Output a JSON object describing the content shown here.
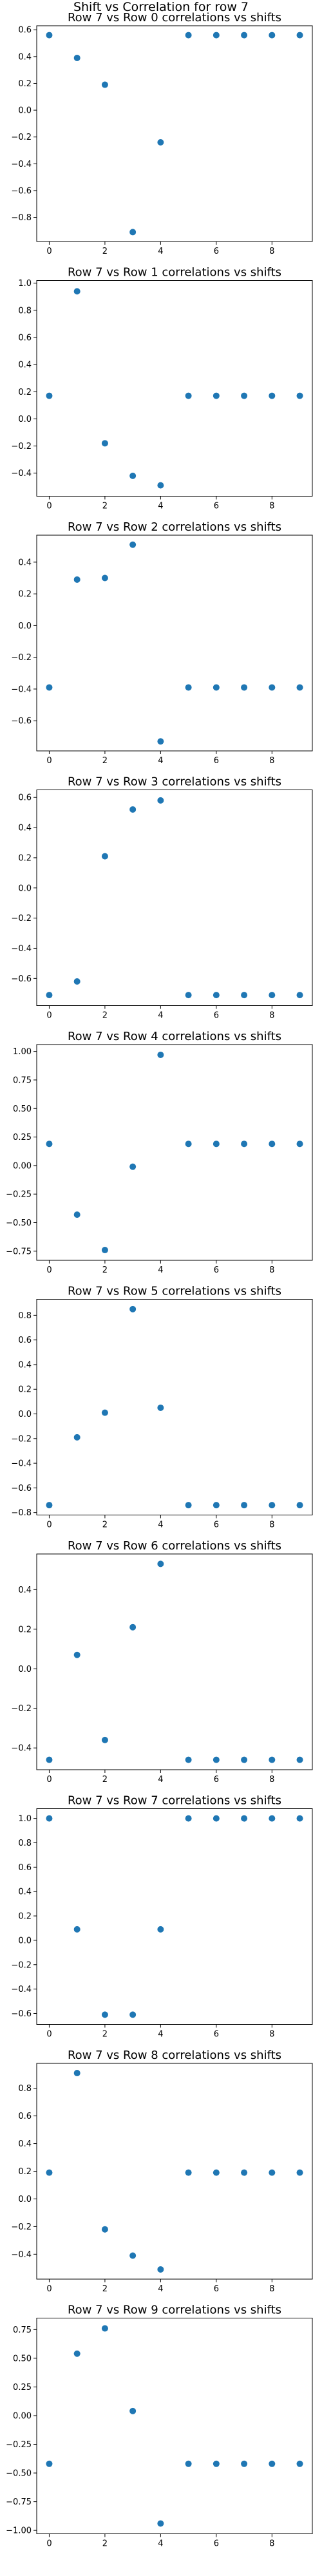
{
  "figure": {
    "suptitle": "Shift vs Correlation for row 7"
  },
  "colors": {
    "marker": "#1f77b4",
    "axes": "#000000",
    "background": "#ffffff"
  },
  "chart_data": [
    {
      "type": "scatter",
      "title": "Row 7 vs Row 0 correlations vs shifts",
      "x": [
        0,
        1,
        2,
        3,
        4,
        5,
        6,
        7,
        8,
        9
      ],
      "y": [
        0.56,
        0.39,
        0.19,
        -0.91,
        -0.24,
        0.56,
        0.56,
        0.56,
        0.56,
        0.56
      ],
      "ylim": [
        -0.98,
        0.63
      ],
      "yticks": [
        -0.8,
        -0.6,
        -0.4,
        -0.2,
        0.0,
        0.2,
        0.4,
        0.6
      ],
      "ytick_labels": [
        "−0.8",
        "−0.6",
        "−0.4",
        "−0.2",
        "0.0",
        "0.2",
        "0.4",
        "0.6"
      ],
      "xticks": [
        0,
        2,
        4,
        6,
        8
      ],
      "grid": false
    },
    {
      "type": "scatter",
      "title": "Row 7 vs Row 1 correlations vs shifts",
      "x": [
        0,
        1,
        2,
        3,
        4,
        5,
        6,
        7,
        8,
        9
      ],
      "y": [
        0.17,
        0.94,
        -0.18,
        -0.42,
        -0.49,
        0.17,
        0.17,
        0.17,
        0.17,
        0.17
      ],
      "ylim": [
        -0.57,
        1.02
      ],
      "yticks": [
        -0.4,
        -0.2,
        0.0,
        0.2,
        0.4,
        0.6,
        0.8,
        1.0
      ],
      "ytick_labels": [
        "−0.4",
        "−0.2",
        "0.0",
        "0.2",
        "0.4",
        "0.6",
        "0.8",
        "1.0"
      ],
      "xticks": [
        0,
        2,
        4,
        6,
        8
      ],
      "grid": false
    },
    {
      "type": "scatter",
      "title": "Row 7 vs Row 2 correlations vs shifts",
      "x": [
        0,
        1,
        2,
        3,
        4,
        5,
        6,
        7,
        8,
        9
      ],
      "y": [
        -0.39,
        0.29,
        0.3,
        0.51,
        -0.73,
        -0.39,
        -0.39,
        -0.39,
        -0.39,
        -0.39
      ],
      "ylim": [
        -0.79,
        0.57
      ],
      "yticks": [
        -0.6,
        -0.4,
        -0.2,
        0.0,
        0.2,
        0.4
      ],
      "ytick_labels": [
        "−0.6",
        "−0.4",
        "−0.2",
        "0.0",
        "0.2",
        "0.4"
      ],
      "xticks": [
        0,
        2,
        4,
        6,
        8
      ],
      "grid": false
    },
    {
      "type": "scatter",
      "title": "Row 7 vs Row 3 correlations vs shifts",
      "x": [
        0,
        1,
        2,
        3,
        4,
        5,
        6,
        7,
        8,
        9
      ],
      "y": [
        -0.71,
        -0.62,
        0.21,
        0.52,
        0.58,
        -0.71,
        -0.71,
        -0.71,
        -0.71,
        -0.71
      ],
      "ylim": [
        -0.78,
        0.65
      ],
      "yticks": [
        -0.6,
        -0.4,
        -0.2,
        0.0,
        0.2,
        0.4,
        0.6
      ],
      "ytick_labels": [
        "−0.6",
        "−0.4",
        "−0.2",
        "0.0",
        "0.2",
        "0.4",
        "0.6"
      ],
      "xticks": [
        0,
        2,
        4,
        6,
        8
      ],
      "grid": false
    },
    {
      "type": "scatter",
      "title": "Row 7 vs Row 4 correlations vs shifts",
      "x": [
        0,
        1,
        2,
        3,
        4,
        5,
        6,
        7,
        8,
        9
      ],
      "y": [
        0.19,
        -0.43,
        -0.74,
        -0.01,
        0.97,
        0.19,
        0.19,
        0.19,
        0.19,
        0.19
      ],
      "ylim": [
        -0.83,
        1.06
      ],
      "yticks": [
        -0.75,
        -0.5,
        -0.25,
        0.0,
        0.25,
        0.5,
        0.75,
        1.0
      ],
      "ytick_labels": [
        "−0.75",
        "−0.50",
        "−0.25",
        "0.00",
        "0.25",
        "0.50",
        "0.75",
        "1.00"
      ],
      "xticks": [
        0,
        2,
        4,
        6,
        8
      ],
      "grid": false
    },
    {
      "type": "scatter",
      "title": "Row 7 vs Row 5 correlations vs shifts",
      "x": [
        0,
        1,
        2,
        3,
        4,
        5,
        6,
        7,
        8,
        9
      ],
      "y": [
        -0.74,
        -0.19,
        0.01,
        0.85,
        0.05,
        -0.74,
        -0.74,
        -0.74,
        -0.74,
        -0.74
      ],
      "ylim": [
        -0.82,
        0.93
      ],
      "yticks": [
        -0.8,
        -0.6,
        -0.4,
        -0.2,
        0.0,
        0.2,
        0.4,
        0.6,
        0.8
      ],
      "ytick_labels": [
        "−0.8",
        "−0.6",
        "−0.4",
        "−0.2",
        "0.0",
        "0.2",
        "0.4",
        "0.6",
        "0.8"
      ],
      "xticks": [
        0,
        2,
        4,
        6,
        8
      ],
      "grid": false
    },
    {
      "type": "scatter",
      "title": "Row 7 vs Row 6 correlations vs shifts",
      "x": [
        0,
        1,
        2,
        3,
        4,
        5,
        6,
        7,
        8,
        9
      ],
      "y": [
        -0.46,
        0.07,
        -0.36,
        0.21,
        0.53,
        -0.46,
        -0.46,
        -0.46,
        -0.46,
        -0.46
      ],
      "ylim": [
        -0.51,
        0.58
      ],
      "yticks": [
        -0.4,
        -0.2,
        0.0,
        0.2,
        0.4
      ],
      "ytick_labels": [
        "−0.4",
        "−0.2",
        "0.0",
        "0.2",
        "0.4"
      ],
      "xticks": [
        0,
        2,
        4,
        6,
        8
      ],
      "grid": false
    },
    {
      "type": "scatter",
      "title": "Row 7 vs Row 7 correlations vs shifts",
      "x": [
        0,
        1,
        2,
        3,
        4,
        5,
        6,
        7,
        8,
        9
      ],
      "y": [
        1.0,
        0.09,
        -0.61,
        -0.61,
        0.09,
        1.0,
        1.0,
        1.0,
        1.0,
        1.0
      ],
      "ylim": [
        -0.69,
        1.08
      ],
      "yticks": [
        -0.6,
        -0.4,
        -0.2,
        0.0,
        0.2,
        0.4,
        0.6,
        0.8,
        1.0
      ],
      "ytick_labels": [
        "−0.6",
        "−0.4",
        "−0.2",
        "0.0",
        "0.2",
        "0.4",
        "0.6",
        "0.8",
        "1.0"
      ],
      "xticks": [
        0,
        2,
        4,
        6,
        8
      ],
      "grid": false
    },
    {
      "type": "scatter",
      "title": "Row 7 vs Row 8 correlations vs shifts",
      "x": [
        0,
        1,
        2,
        3,
        4,
        5,
        6,
        7,
        8,
        9
      ],
      "y": [
        0.19,
        0.91,
        -0.22,
        -0.41,
        -0.51,
        0.19,
        0.19,
        0.19,
        0.19,
        0.19
      ],
      "ylim": [
        -0.58,
        0.98
      ],
      "yticks": [
        -0.4,
        -0.2,
        0.0,
        0.2,
        0.4,
        0.6,
        0.8
      ],
      "ytick_labels": [
        "−0.4",
        "−0.2",
        "0.0",
        "0.2",
        "0.4",
        "0.6",
        "0.8"
      ],
      "xticks": [
        0,
        2,
        4,
        6,
        8
      ],
      "grid": false
    },
    {
      "type": "scatter",
      "title": "Row 7 vs Row 9 correlations vs shifts",
      "x": [
        0,
        1,
        2,
        3,
        4,
        5,
        6,
        7,
        8,
        9
      ],
      "y": [
        -0.42,
        0.54,
        0.76,
        0.04,
        -0.94,
        -0.42,
        -0.42,
        -0.42,
        -0.42,
        -0.42
      ],
      "ylim": [
        -1.03,
        0.85
      ],
      "yticks": [
        -1.0,
        -0.75,
        -0.5,
        -0.25,
        0.0,
        0.25,
        0.5,
        0.75
      ],
      "ytick_labels": [
        "−1.00",
        "−0.75",
        "−0.50",
        "−0.25",
        "0.00",
        "0.25",
        "0.50",
        "0.75"
      ],
      "xticks": [
        0,
        2,
        4,
        6,
        8
      ],
      "grid": false
    }
  ]
}
